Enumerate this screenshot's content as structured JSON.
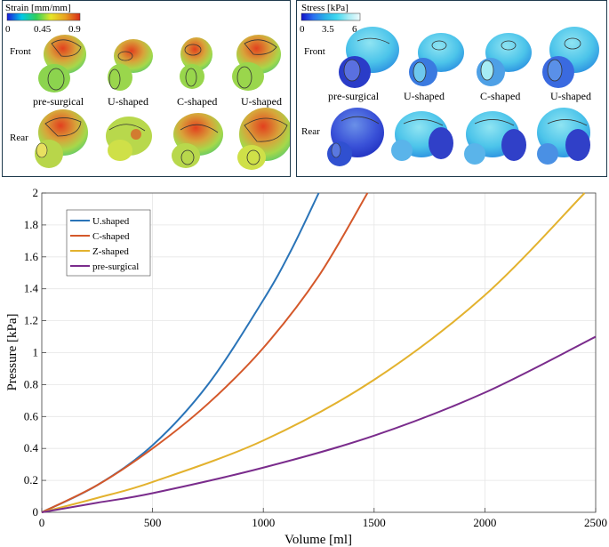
{
  "strain_panel": {
    "colorbar_title": "Strain [mm/mm]",
    "ticks": [
      "0",
      "0.45",
      "0.9"
    ],
    "row_labels": [
      "Front",
      "Rear"
    ],
    "model_labels": [
      "pre-surgical",
      "U-shaped",
      "C-shaped",
      "U-shaped"
    ],
    "colors": [
      "#1a1adc",
      "#00c8e6",
      "#2fd05a",
      "#e6e628",
      "#e8a020",
      "#d92a1a"
    ]
  },
  "stress_panel": {
    "colorbar_title": "Stress [kPa]",
    "ticks": [
      "0",
      "3.5",
      "6"
    ],
    "row_labels": [
      "Front",
      "Rear"
    ],
    "model_labels": [
      "pre-surgical",
      "U-shaped",
      "C-shaped",
      "U-shaped"
    ],
    "colors": [
      "#1010c8",
      "#2a6ef0",
      "#2ab0e8",
      "#40d8f0",
      "#a6ecf4",
      "#f0fbfd"
    ]
  },
  "chart_data": {
    "type": "line",
    "xlabel": "Volume [ml]",
    "ylabel": "Pressure [kPa]",
    "xlim": [
      0,
      2500
    ],
    "ylim": [
      0,
      2
    ],
    "xticks": [
      0,
      500,
      1000,
      1500,
      2000,
      2500
    ],
    "yticks": [
      0,
      0.2,
      0.4,
      0.6,
      0.8,
      1,
      1.2,
      1.4,
      1.6,
      1.8,
      2
    ],
    "grid": true,
    "legend_position": "top-left",
    "series": [
      {
        "name": "U.shaped",
        "color": "#2a74b8",
        "x": [
          0,
          250,
          500,
          750,
          1000,
          1125,
          1250
        ],
        "y": [
          0,
          0.17,
          0.42,
          0.8,
          1.33,
          1.64,
          2.0
        ]
      },
      {
        "name": "C-shaped",
        "color": "#d4582a",
        "x": [
          0,
          250,
          500,
          750,
          1000,
          1250,
          1470
        ],
        "y": [
          0,
          0.17,
          0.4,
          0.68,
          1.03,
          1.48,
          2.0
        ]
      },
      {
        "name": "Z-shaped",
        "color": "#e3b22e",
        "x": [
          0,
          250,
          500,
          1000,
          1500,
          2000,
          2450
        ],
        "y": [
          0,
          0.09,
          0.19,
          0.45,
          0.83,
          1.36,
          2.0
        ]
      },
      {
        "name": "pre-surgical",
        "color": "#7a2c8c",
        "x": [
          0,
          250,
          500,
          1000,
          1500,
          2000,
          2500
        ],
        "y": [
          0,
          0.06,
          0.12,
          0.28,
          0.48,
          0.75,
          1.1
        ]
      }
    ]
  }
}
